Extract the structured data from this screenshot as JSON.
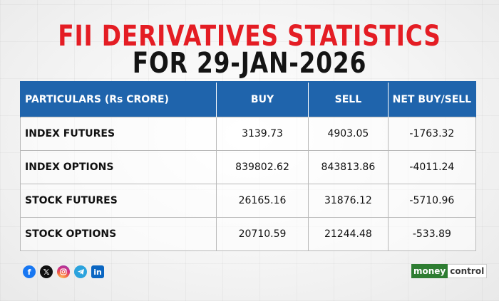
{
  "title": {
    "line1": "FII DERIVATIVES STATISTICS",
    "line2": "FOR 29-JAN-2026"
  },
  "table": {
    "headers": [
      "PARTICULARS (Rs CRORE)",
      "BUY",
      "SELL",
      "NET BUY/SELL"
    ],
    "rows": [
      [
        "INDEX FUTURES",
        "3139.73",
        "4903.05",
        "-1763.32"
      ],
      [
        "INDEX OPTIONS",
        "839802.62",
        "843813.86",
        "-4011.24"
      ],
      [
        "STOCK FUTURES",
        "26165.16",
        "31876.12",
        "-5710.96"
      ],
      [
        "STOCK OPTIONS",
        "20710.59",
        "21244.48",
        "-533.89"
      ]
    ]
  },
  "social": {
    "icons": [
      "facebook-icon",
      "x-icon",
      "instagram-icon",
      "telegram-icon",
      "linkedin-icon"
    ]
  },
  "brand": {
    "part1": "money",
    "part2": "control"
  },
  "colors": {
    "title_red": "#e41d24",
    "header_blue": "#1f64ac",
    "brand_green": "#2e7d32"
  }
}
